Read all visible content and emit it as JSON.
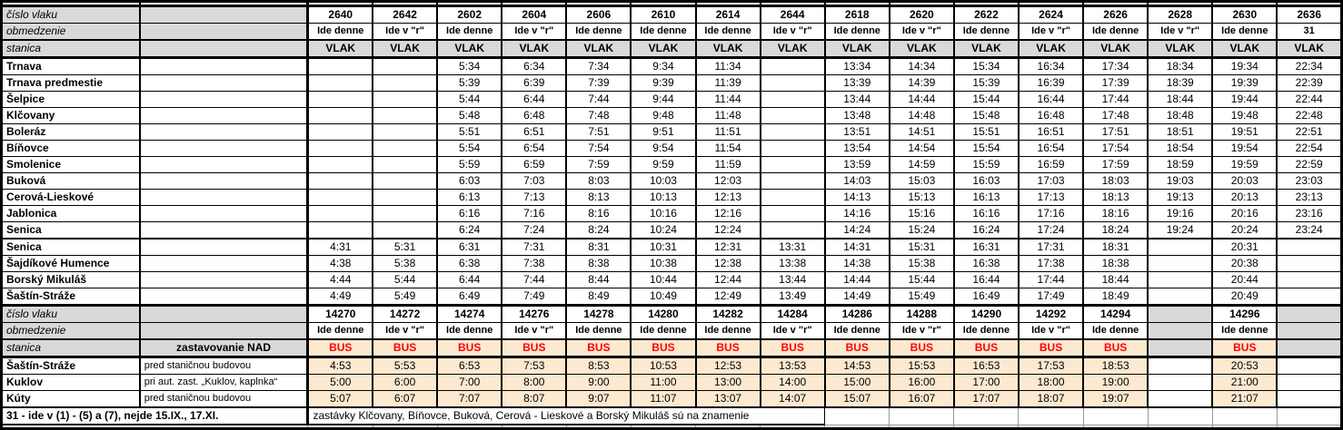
{
  "colors": {
    "header_bg": "#D9D9D9",
    "bus_bg": "#FCE9D0",
    "bus_text": "#FF0000",
    "grid": "#000000",
    "light_grid": "#999999"
  },
  "labels": {
    "train_number": "číslo vlaku",
    "restriction": "obmedzenie",
    "station": "stanica",
    "nad": "zastavovanie NAD",
    "vlak": "VLAK",
    "bus": "BUS"
  },
  "train_section": {
    "trains": [
      {
        "number": "2640",
        "restriction": "Ide denne"
      },
      {
        "number": "2642",
        "restriction": "Ide v \"r\""
      },
      {
        "number": "2602",
        "restriction": "Ide denne"
      },
      {
        "number": "2604",
        "restriction": "Ide v \"r\""
      },
      {
        "number": "2606",
        "restriction": "Ide denne"
      },
      {
        "number": "2610",
        "restriction": "Ide denne"
      },
      {
        "number": "2614",
        "restriction": "Ide denne"
      },
      {
        "number": "2644",
        "restriction": "Ide v \"r\""
      },
      {
        "number": "2618",
        "restriction": "Ide denne"
      },
      {
        "number": "2620",
        "restriction": "Ide v \"r\""
      },
      {
        "number": "2622",
        "restriction": "Ide denne"
      },
      {
        "number": "2624",
        "restriction": "Ide v \"r\""
      },
      {
        "number": "2626",
        "restriction": "Ide denne"
      },
      {
        "number": "2628",
        "restriction": "Ide v \"r\""
      },
      {
        "number": "2630",
        "restriction": "Ide denne"
      },
      {
        "number": "2636",
        "restriction": "31"
      }
    ],
    "rows": [
      {
        "station": "Trnava",
        "times": [
          "",
          "",
          "5:34",
          "6:34",
          "7:34",
          "9:34",
          "11:34",
          "",
          "13:34",
          "14:34",
          "15:34",
          "16:34",
          "17:34",
          "18:34",
          "19:34",
          "22:34"
        ]
      },
      {
        "station": "Trnava predmestie",
        "times": [
          "",
          "",
          "5:39",
          "6:39",
          "7:39",
          "9:39",
          "11:39",
          "",
          "13:39",
          "14:39",
          "15:39",
          "16:39",
          "17:39",
          "18:39",
          "19:39",
          "22:39"
        ]
      },
      {
        "station": "Šelpice",
        "times": [
          "",
          "",
          "5:44",
          "6:44",
          "7:44",
          "9:44",
          "11:44",
          "",
          "13:44",
          "14:44",
          "15:44",
          "16:44",
          "17:44",
          "18:44",
          "19:44",
          "22:44"
        ]
      },
      {
        "station": "Klčovany",
        "times": [
          "",
          "",
          "5:48",
          "6:48",
          "7:48",
          "9:48",
          "11:48",
          "",
          "13:48",
          "14:48",
          "15:48",
          "16:48",
          "17:48",
          "18:48",
          "19:48",
          "22:48"
        ]
      },
      {
        "station": "Boleráz",
        "times": [
          "",
          "",
          "5:51",
          "6:51",
          "7:51",
          "9:51",
          "11:51",
          "",
          "13:51",
          "14:51",
          "15:51",
          "16:51",
          "17:51",
          "18:51",
          "19:51",
          "22:51"
        ]
      },
      {
        "station": "Bíňovce",
        "times": [
          "",
          "",
          "5:54",
          "6:54",
          "7:54",
          "9:54",
          "11:54",
          "",
          "13:54",
          "14:54",
          "15:54",
          "16:54",
          "17:54",
          "18:54",
          "19:54",
          "22:54"
        ]
      },
      {
        "station": "Smolenice",
        "times": [
          "",
          "",
          "5:59",
          "6:59",
          "7:59",
          "9:59",
          "11:59",
          "",
          "13:59",
          "14:59",
          "15:59",
          "16:59",
          "17:59",
          "18:59",
          "19:59",
          "22:59"
        ]
      },
      {
        "station": "Buková",
        "times": [
          "",
          "",
          "6:03",
          "7:03",
          "8:03",
          "10:03",
          "12:03",
          "",
          "14:03",
          "15:03",
          "16:03",
          "17:03",
          "18:03",
          "19:03",
          "20:03",
          "23:03"
        ]
      },
      {
        "station": "Cerová-Lieskové",
        "times": [
          "",
          "",
          "6:13",
          "7:13",
          "8:13",
          "10:13",
          "12:13",
          "",
          "14:13",
          "15:13",
          "16:13",
          "17:13",
          "18:13",
          "19:13",
          "20:13",
          "23:13"
        ]
      },
      {
        "station": "Jablonica",
        "times": [
          "",
          "",
          "6:16",
          "7:16",
          "8:16",
          "10:16",
          "12:16",
          "",
          "14:16",
          "15:16",
          "16:16",
          "17:16",
          "18:16",
          "19:16",
          "20:16",
          "23:16"
        ]
      },
      {
        "station": "Senica",
        "times": [
          "",
          "",
          "6:24",
          "7:24",
          "8:24",
          "10:24",
          "12:24",
          "",
          "14:24",
          "15:24",
          "16:24",
          "17:24",
          "18:24",
          "19:24",
          "20:24",
          "23:24"
        ]
      },
      {
        "station": "Senica",
        "sep": true,
        "times": [
          "4:31",
          "5:31",
          "6:31",
          "7:31",
          "8:31",
          "10:31",
          "12:31",
          "13:31",
          "14:31",
          "15:31",
          "16:31",
          "17:31",
          "18:31",
          "",
          "20:31",
          ""
        ]
      },
      {
        "station": "Šajdíkové Humence",
        "times": [
          "4:38",
          "5:38",
          "6:38",
          "7:38",
          "8:38",
          "10:38",
          "12:38",
          "13:38",
          "14:38",
          "15:38",
          "16:38",
          "17:38",
          "18:38",
          "",
          "20:38",
          ""
        ]
      },
      {
        "station": "Borský Mikuláš",
        "times": [
          "4:44",
          "5:44",
          "6:44",
          "7:44",
          "8:44",
          "10:44",
          "12:44",
          "13:44",
          "14:44",
          "15:44",
          "16:44",
          "17:44",
          "18:44",
          "",
          "20:44",
          ""
        ]
      },
      {
        "station": "Šaštín-Stráže",
        "times": [
          "4:49",
          "5:49",
          "6:49",
          "7:49",
          "8:49",
          "10:49",
          "12:49",
          "13:49",
          "14:49",
          "15:49",
          "16:49",
          "17:49",
          "18:49",
          "",
          "20:49",
          ""
        ]
      }
    ]
  },
  "bus_section": {
    "trains": [
      {
        "number": "14270",
        "restriction": "Ide denne"
      },
      {
        "number": "14272",
        "restriction": "Ide v \"r\""
      },
      {
        "number": "14274",
        "restriction": "Ide denne"
      },
      {
        "number": "14276",
        "restriction": "Ide v \"r\""
      },
      {
        "number": "14278",
        "restriction": "Ide denne"
      },
      {
        "number": "14280",
        "restriction": "Ide denne"
      },
      {
        "number": "14282",
        "restriction": "Ide denne"
      },
      {
        "number": "14284",
        "restriction": "Ide v \"r\""
      },
      {
        "number": "14286",
        "restriction": "Ide denne"
      },
      {
        "number": "14288",
        "restriction": "Ide v \"r\""
      },
      {
        "number": "14290",
        "restriction": "Ide denne"
      },
      {
        "number": "14292",
        "restriction": "Ide v \"r\""
      },
      {
        "number": "14294",
        "restriction": "Ide denne"
      },
      {
        "number": "",
        "restriction": "",
        "disabled": true
      },
      {
        "number": "14296",
        "restriction": "Ide denne"
      },
      {
        "number": "",
        "restriction": "",
        "disabled": true
      }
    ],
    "rows": [
      {
        "station": "Šaštín-Stráže",
        "nad": "pred staničnou budovou",
        "times": [
          "4:53",
          "5:53",
          "6:53",
          "7:53",
          "8:53",
          "10:53",
          "12:53",
          "13:53",
          "14:53",
          "15:53",
          "16:53",
          "17:53",
          "18:53",
          "",
          "20:53",
          ""
        ]
      },
      {
        "station": "Kuklov",
        "nad": "pri aut. zast. „Kuklov, kaplnka“",
        "times": [
          "5:00",
          "6:00",
          "7:00",
          "8:00",
          "9:00",
          "11:00",
          "13:00",
          "14:00",
          "15:00",
          "16:00",
          "17:00",
          "18:00",
          "19:00",
          "",
          "21:00",
          ""
        ]
      },
      {
        "station": "Kúty",
        "nad": "pred staničnou budovou",
        "times": [
          "5:07",
          "6:07",
          "7:07",
          "8:07",
          "9:07",
          "11:07",
          "13:07",
          "14:07",
          "15:07",
          "16:07",
          "17:07",
          "18:07",
          "19:07",
          "",
          "21:07",
          ""
        ]
      }
    ]
  },
  "footer": {
    "left": "31 - ide v (1) - (5) a (7), nejde 15.IX., 17.XI.",
    "right": "zastávky Klčovany, Bíňovce, Buková, Cerová - Lieskové a Borský Mikuláš sú na znamenie"
  }
}
